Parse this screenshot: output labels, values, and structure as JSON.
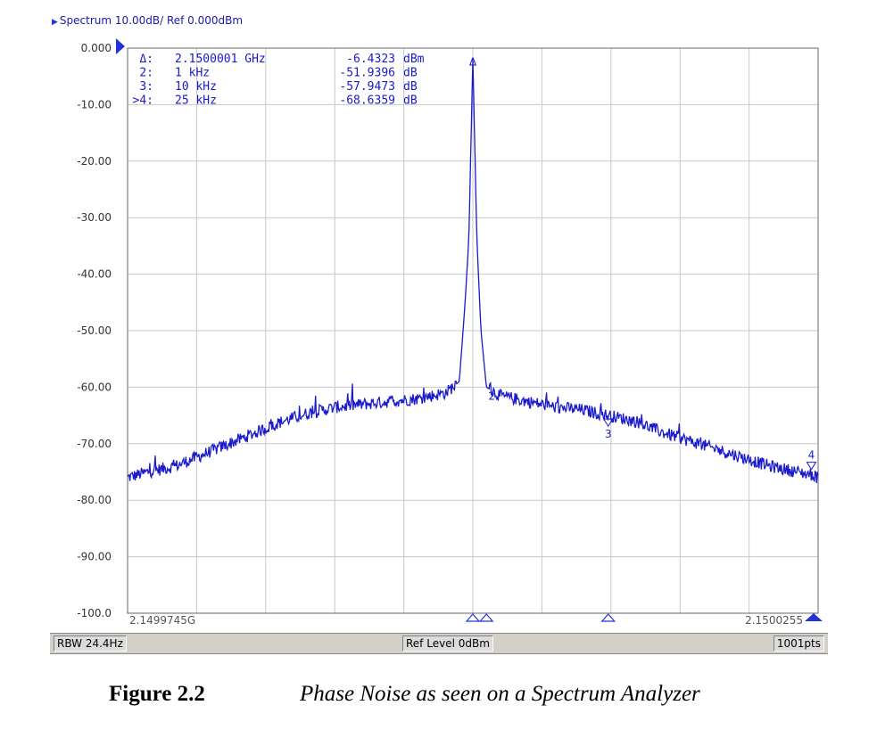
{
  "header": {
    "title": "Spectrum 10.00dB/ Ref 0.000dBm"
  },
  "chart_data": {
    "type": "line",
    "title": "Spectrum 10.00dB/ Ref 0.000dBm",
    "ylim": [
      -100,
      0
    ],
    "y_ticks": [
      "0.000",
      "-10.00",
      "-20.00",
      "-30.00",
      "-40.00",
      "-50.00",
      "-60.00",
      "-70.00",
      "-80.00",
      "-90.00",
      "-100.0"
    ],
    "x_start_label": "2.1499745G",
    "x_stop_label": "2.1500255",
    "x_range_khz": [
      -25.5,
      25.5
    ],
    "grid": true,
    "series": [
      {
        "color": "#1a1acc",
        "x": [
          -25.5,
          -24,
          -22,
          -20,
          -18,
          -16,
          -14,
          -12,
          -10,
          -8,
          -6,
          -4,
          -2,
          -1,
          -0.6,
          -0.3,
          0,
          0.3,
          0.6,
          1,
          2,
          4,
          6,
          8,
          9,
          10,
          12,
          14,
          16,
          18,
          20,
          22,
          24,
          25,
          25.5
        ],
        "y": [
          -76,
          -75,
          -74,
          -72,
          -70,
          -68,
          -66,
          -64.5,
          -63.5,
          -63,
          -62.5,
          -62,
          -61,
          -59,
          -46,
          -34,
          -2,
          -34,
          -50,
          -60,
          -61.5,
          -62.5,
          -63.5,
          -64,
          -64.5,
          -65,
          -66,
          -68,
          -69.5,
          -71,
          -72.5,
          -74,
          -75,
          -75.5,
          -76
        ]
      }
    ],
    "markers": {
      "readout": [
        {
          "id": "Δ:",
          "freq": "2.1500001 GHz",
          "value": "-6.4323 dBm"
        },
        {
          "id": "2:",
          "freq": "1 kHz",
          "value": "-51.9396 dB"
        },
        {
          "id": "3:",
          "freq": "10 kHz",
          "value": "-57.9473 dB"
        },
        {
          "id": ">4:",
          "freq": "25 kHz",
          "value": "-68.6359 dB"
        }
      ],
      "points": [
        {
          "label": "Δ",
          "x": 0,
          "y": -2
        },
        {
          "label": "2",
          "x": 1,
          "y": -60
        },
        {
          "label": "3",
          "x": 10,
          "y": -65
        },
        {
          "label": "4",
          "x": 25,
          "y": -75.5
        }
      ]
    }
  },
  "status": {
    "rbw": "RBW 24.4Hz",
    "ref_level": "Ref Level 0dBm",
    "points": "1001pts"
  },
  "caption": {
    "figure": "Figure 2.2",
    "text": "Phase Noise as seen on a Spectrum Analyzer"
  }
}
